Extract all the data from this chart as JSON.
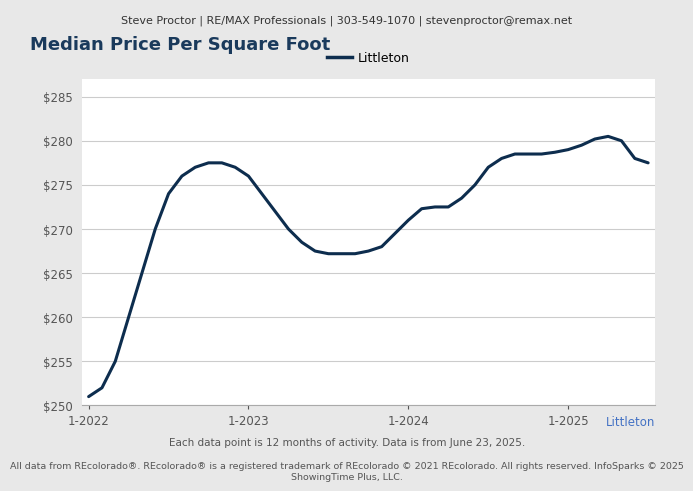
{
  "header_text": "Steve Proctor | RE/MAX Professionals | 303-549-1070 | stevenproctor@remax.net",
  "title": "Median Price Per Square Foot",
  "legend_label": "Littleton",
  "x_axis_label_end": "Littleton",
  "footnote1": "Each data point is 12 months of activity. Data is from June 23, 2025.",
  "footnote2": "All data from REcolorado®. REcolorado® is a registered trademark of REcolorado © 2021 REcolorado. All rights reserved. InfoSparks © 2025\nShowingTime Plus, LLC.",
  "line_color": "#0d2d4e",
  "background_color": "#e8e8e8",
  "plot_bg_color": "#ffffff",
  "ylim": [
    250,
    287
  ],
  "yticks": [
    250,
    255,
    260,
    265,
    270,
    275,
    280,
    285
  ],
  "x_data": [
    0,
    1,
    2,
    3,
    4,
    5,
    6,
    7,
    8,
    9,
    10,
    11,
    12,
    13,
    14,
    15,
    16,
    17,
    18,
    19,
    20,
    21,
    22,
    23,
    24,
    25,
    26,
    27,
    28,
    29,
    30,
    31,
    32,
    33,
    34,
    35,
    36,
    37,
    38,
    39,
    40,
    41,
    42
  ],
  "y_data": [
    251,
    252,
    255,
    260,
    265,
    270,
    274,
    276,
    277,
    277.5,
    277.5,
    277,
    276,
    274,
    272,
    270,
    268.5,
    267.5,
    267.2,
    267.2,
    267.2,
    267.5,
    268,
    269.5,
    271,
    272.3,
    272.5,
    272.5,
    273.5,
    275,
    277,
    278,
    278.5,
    278.5,
    278.5,
    278.7,
    279,
    279.5,
    280.2,
    280.5,
    280,
    278,
    277.5
  ],
  "xtick_positions": [
    0,
    12,
    24,
    36
  ],
  "xtick_labels": [
    "1-2022",
    "1-2023",
    "1-2024",
    "1-2025"
  ],
  "line_width": 2.2,
  "header_fontsize": 8.0,
  "title_fontsize": 13,
  "tick_fontsize": 8.5,
  "footnote1_fontsize": 7.5,
  "footnote2_fontsize": 6.8,
  "title_color": "#1a3a5c",
  "tick_color": "#555555",
  "footnote_color": "#555555",
  "legend_color": "#4472c4",
  "x_axis_end_label_color": "#4472c4",
  "header_bg": "#d8d8d8",
  "grid_color": "#cccccc"
}
